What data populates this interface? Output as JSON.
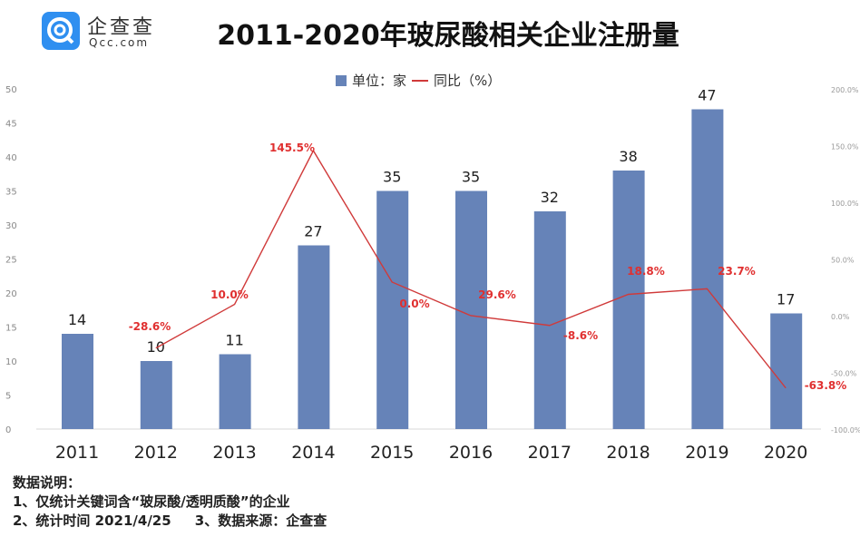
{
  "logo": {
    "name_cn": "企查查",
    "name_en": "Qcc.com",
    "color": "#2f8ff0"
  },
  "chart_data": {
    "type": "bar+line",
    "title": "2011-2020年玻尿酸相关企业注册量",
    "categories": [
      "2011",
      "2012",
      "2013",
      "2014",
      "2015",
      "2016",
      "2017",
      "2018",
      "2019",
      "2020"
    ],
    "series": [
      {
        "name": "单位：家",
        "type": "bar",
        "axis": "left",
        "color": "#6683b8",
        "values": [
          14,
          10,
          11,
          27,
          35,
          35,
          32,
          38,
          47,
          17
        ]
      },
      {
        "name": "同比（%）",
        "type": "line",
        "axis": "right",
        "color": "#d03a3a",
        "values": [
          null,
          -28.6,
          10.0,
          145.5,
          29.6,
          0.0,
          -8.6,
          18.8,
          23.7,
          -63.8
        ],
        "labels": [
          "",
          "-28.6%",
          "10.0%",
          "145.5%",
          "29.6%",
          "0.0%",
          "-8.6%",
          "18.8%",
          "23.7%",
          "-63.8%"
        ]
      }
    ],
    "left_axis": {
      "ylim": [
        0,
        50
      ],
      "ticks": [
        "0",
        "5",
        "10",
        "15",
        "20",
        "25",
        "30",
        "35",
        "40",
        "45",
        "50"
      ]
    },
    "right_axis": {
      "ylim": [
        -100,
        200
      ],
      "ticks": [
        "-100.0%",
        "-50.0%",
        "0.0%",
        "50.0%",
        "100.0%",
        "150.0%",
        "200.0%"
      ]
    },
    "grid": false,
    "legend": "top-center"
  },
  "notes": {
    "heading": "数据说明：",
    "line1": "1、仅统计关键词含“玻尿酸/透明质酸”的企业",
    "line2": "2、统计时间 2021/4/25     3、数据来源：企查查"
  }
}
